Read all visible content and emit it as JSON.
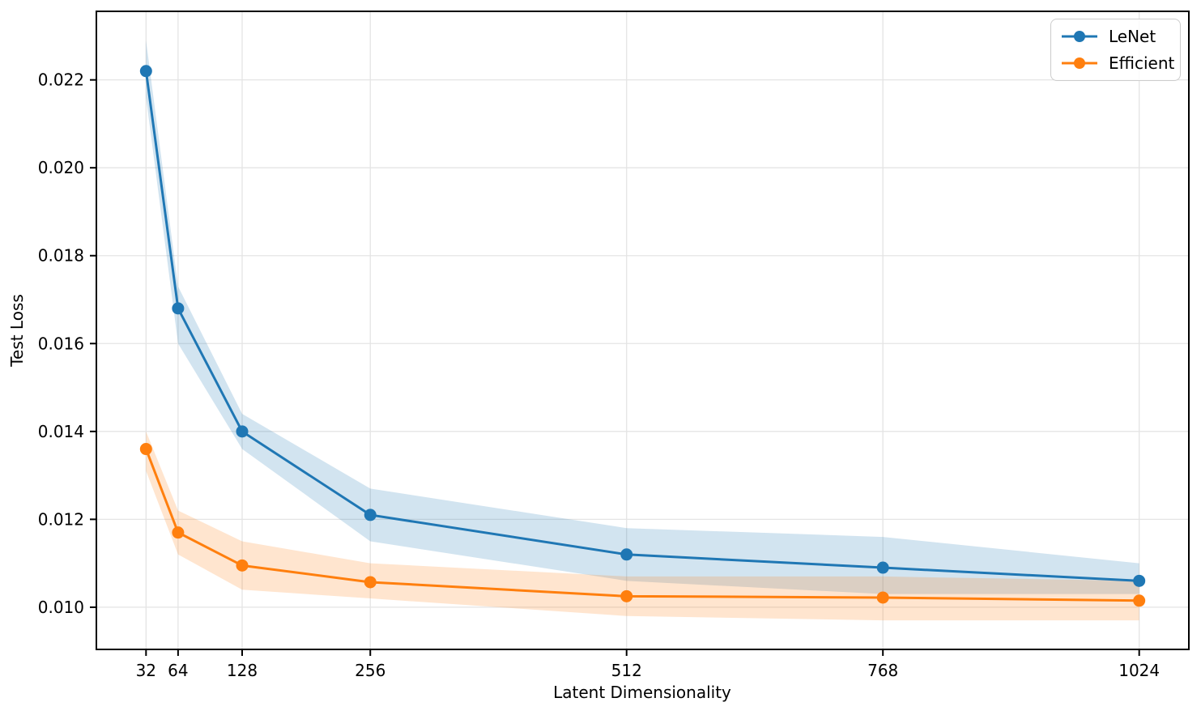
{
  "chart_data": {
    "type": "line",
    "title": "",
    "xlabel": "Latent Dimensionality",
    "ylabel": "Test Loss",
    "x": [
      32,
      64,
      128,
      256,
      512,
      768,
      1024
    ],
    "xticks": [
      32,
      64,
      128,
      256,
      512,
      768,
      1024
    ],
    "xtick_labels": [
      "32",
      "64",
      "128",
      "256",
      "512",
      "768",
      "1024"
    ],
    "yticks": [
      0.01,
      0.012,
      0.014,
      0.016,
      0.018,
      0.02,
      0.022
    ],
    "ytick_labels": [
      "0.010",
      "0.012",
      "0.014",
      "0.016",
      "0.018",
      "0.020",
      "0.022"
    ],
    "xlim": [
      -17.6,
      1073.6
    ],
    "ylim": [
      0.00904,
      0.02356
    ],
    "grid": true,
    "grid_color": "#e4e4e4",
    "spine_color": "#000000",
    "legend_position": "upper right",
    "series": [
      {
        "name": "LeNet",
        "color": "#1f77b4",
        "band_alpha": 0.2,
        "values": [
          0.0222,
          0.0168,
          0.014,
          0.0121,
          0.0112,
          0.0109,
          0.0106
        ],
        "band_upper": [
          0.0229,
          0.0173,
          0.0144,
          0.0127,
          0.0118,
          0.0116,
          0.011
        ],
        "band_lower": [
          0.0216,
          0.016,
          0.0136,
          0.0115,
          0.0106,
          0.0103,
          0.0103
        ]
      },
      {
        "name": "Efficient",
        "color": "#ff7f0e",
        "band_alpha": 0.2,
        "values": [
          0.0136,
          0.0117,
          0.01095,
          0.01057,
          0.01025,
          0.01022,
          0.01015
        ],
        "band_upper": [
          0.014,
          0.0122,
          0.0115,
          0.011,
          0.0107,
          0.0107,
          0.0106
        ],
        "band_lower": [
          0.0131,
          0.0112,
          0.0104,
          0.0102,
          0.0098,
          0.0097,
          0.0097
        ]
      }
    ]
  }
}
